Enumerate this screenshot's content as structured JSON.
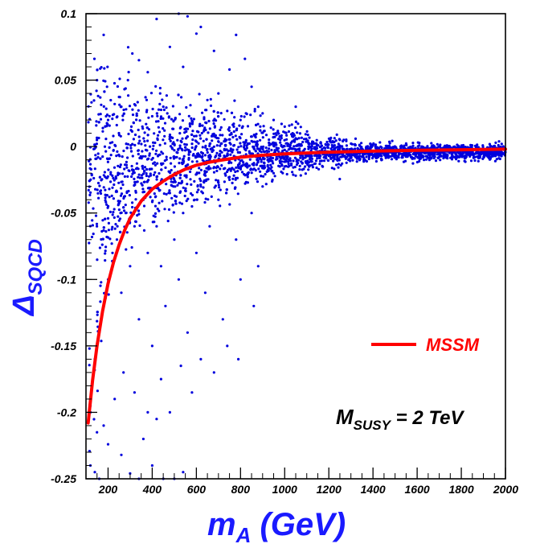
{
  "chart_data": {
    "type": "scatter",
    "title": "",
    "xlabel": {
      "main": "m",
      "sub": "A",
      "rest": " (GeV)"
    },
    "ylabel": {
      "main": "Δ",
      "sub": "SQCD"
    },
    "xlim": [
      100,
      2000
    ],
    "ylim": [
      -0.25,
      0.1
    ],
    "xticks": [
      200,
      400,
      600,
      800,
      1000,
      1200,
      1400,
      1600,
      1800,
      2000
    ],
    "xtick_labels": [
      "200",
      "400",
      "600",
      "800",
      "1000",
      "1200",
      "1400",
      "1600",
      "1800",
      "2000"
    ],
    "yticks": [
      -0.25,
      -0.2,
      -0.15,
      -0.1,
      -0.05,
      0,
      0.05,
      0.1
    ],
    "ytick_labels": [
      "-0.25",
      "-0.2",
      "-0.15",
      "-0.1",
      "-0.05",
      "0",
      "0.05",
      "0.1"
    ],
    "grid": false,
    "legend": {
      "position": "right",
      "entries": [
        {
          "label": "MSSM",
          "color": "#ff0000"
        }
      ]
    },
    "annotation": {
      "main": "M",
      "sub": "SUSY",
      "rest": " = 2 TeV"
    },
    "series": [
      {
        "name": "MSSM",
        "kind": "line",
        "color": "#ff0000",
        "x": [
          110,
          130,
          150,
          175,
          200,
          225,
          250,
          275,
          300,
          350,
          400,
          450,
          500,
          550,
          600,
          650,
          700,
          800,
          900,
          1000,
          1200,
          1400,
          1600,
          1800,
          2000
        ],
        "y": [
          -0.208,
          -0.176,
          -0.15,
          -0.124,
          -0.103,
          -0.087,
          -0.074,
          -0.063,
          -0.054,
          -0.041,
          -0.032,
          -0.026,
          -0.021,
          -0.017,
          -0.014,
          -0.012,
          -0.0105,
          -0.008,
          -0.0065,
          -0.0055,
          -0.0042,
          -0.0034,
          -0.0028,
          -0.0024,
          -0.002
        ]
      },
      {
        "kind": "scatter",
        "color": "#0000dd",
        "points": [
          [
            150,
            0.05
          ],
          [
            180,
            0.084
          ],
          [
            200,
            0.02
          ],
          [
            230,
            0.032
          ],
          [
            260,
            0.03
          ],
          [
            290,
            0.05
          ],
          [
            310,
            0.07
          ],
          [
            340,
            0.065
          ],
          [
            380,
            0.056
          ],
          [
            420,
            0.096
          ],
          [
            450,
            0.03
          ],
          [
            480,
            0.075
          ],
          [
            520,
            0.1
          ],
          [
            540,
            0.06
          ],
          [
            560,
            0.098
          ],
          [
            600,
            0.085
          ],
          [
            620,
            0.09
          ],
          [
            650,
            0.035
          ],
          [
            680,
            0.072
          ],
          [
            700,
            0.04
          ],
          [
            750,
            0.058
          ],
          [
            780,
            0.084
          ],
          [
            800,
            0.02
          ],
          [
            820,
            0.066
          ],
          [
            850,
            0.045
          ],
          [
            880,
            0.03
          ],
          [
            900,
            0.025
          ],
          [
            950,
            0.02
          ],
          [
            1000,
            0.015
          ],
          [
            1050,
            0.03
          ],
          [
            140,
            -0.16
          ],
          [
            160,
            -0.14
          ],
          [
            180,
            -0.12
          ],
          [
            200,
            -0.1
          ],
          [
            220,
            -0.08
          ],
          [
            240,
            -0.07
          ],
          [
            260,
            -0.11
          ],
          [
            280,
            -0.05
          ],
          [
            300,
            -0.09
          ],
          [
            320,
            -0.06
          ],
          [
            340,
            -0.13
          ],
          [
            360,
            -0.04
          ],
          [
            380,
            -0.08
          ],
          [
            400,
            -0.15
          ],
          [
            420,
            -0.06
          ],
          [
            440,
            -0.09
          ],
          [
            460,
            -0.12
          ],
          [
            480,
            -0.035
          ],
          [
            500,
            -0.07
          ],
          [
            520,
            -0.1
          ],
          [
            540,
            -0.05
          ],
          [
            560,
            -0.14
          ],
          [
            580,
            -0.045
          ],
          [
            600,
            -0.08
          ],
          [
            620,
            -0.03
          ],
          [
            640,
            -0.11
          ],
          [
            660,
            -0.06
          ],
          [
            700,
            -0.04
          ],
          [
            720,
            -0.13
          ],
          [
            750,
            -0.025
          ],
          [
            780,
            -0.07
          ],
          [
            800,
            -0.1
          ],
          [
            850,
            -0.05
          ],
          [
            880,
            -0.09
          ],
          [
            900,
            -0.03
          ],
          [
            950,
            -0.02
          ],
          [
            1000,
            -0.015
          ],
          [
            1100,
            -0.012
          ],
          [
            120,
            -0.24
          ],
          [
            140,
            -0.245
          ],
          [
            160,
            -0.25
          ],
          [
            200,
            -0.224
          ],
          [
            260,
            -0.232
          ],
          [
            300,
            -0.246
          ],
          [
            340,
            -0.25
          ],
          [
            380,
            -0.2
          ],
          [
            400,
            -0.24
          ],
          [
            420,
            -0.205
          ],
          [
            450,
            -0.25
          ],
          [
            500,
            -0.25
          ],
          [
            540,
            -0.245
          ],
          [
            120,
            -0.195
          ],
          [
            150,
            -0.215
          ],
          [
            180,
            -0.21
          ],
          [
            230,
            -0.19
          ],
          [
            270,
            -0.17
          ],
          [
            320,
            -0.185
          ],
          [
            360,
            -0.22
          ],
          [
            440,
            -0.175
          ],
          [
            480,
            -0.2
          ],
          [
            530,
            -0.165
          ],
          [
            580,
            -0.185
          ],
          [
            620,
            -0.16
          ],
          [
            680,
            -0.17
          ],
          [
            740,
            -0.15
          ],
          [
            790,
            -0.16
          ],
          [
            860,
            -0.12
          ]
        ],
        "band": {
          "x_range": [
            110,
            2000
          ],
          "center": -0.004,
          "spread_min": 0.003,
          "spread_max": 0.035,
          "count": 2800
        }
      }
    ]
  }
}
